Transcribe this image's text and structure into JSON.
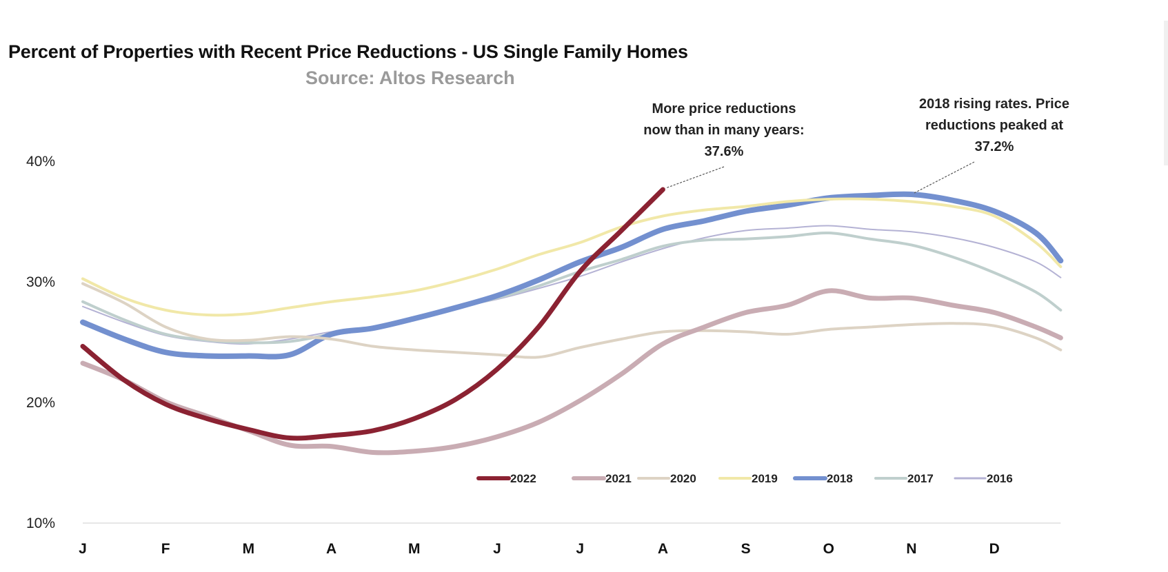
{
  "chart_data": {
    "type": "line",
    "title": "Percent of Properties with Recent Price Reductions - US Single Family Homes",
    "subtitle": "Source: Altos Research",
    "xlabel": "",
    "ylabel": "",
    "ylim": [
      10,
      40
    ],
    "yticks": [
      {
        "value": 40,
        "label": "40%"
      },
      {
        "value": 30,
        "label": "30%"
      },
      {
        "value": 20,
        "label": "20%"
      },
      {
        "value": 10,
        "label": "10%"
      }
    ],
    "xticks": [
      {
        "value": 0,
        "label": "J"
      },
      {
        "value": 1,
        "label": "F"
      },
      {
        "value": 2,
        "label": "M"
      },
      {
        "value": 3,
        "label": "A"
      },
      {
        "value": 4,
        "label": "M"
      },
      {
        "value": 5,
        "label": "J"
      },
      {
        "value": 6,
        "label": "J"
      },
      {
        "value": 7,
        "label": "A"
      },
      {
        "value": 8,
        "label": "S"
      },
      {
        "value": 9,
        "label": "O"
      },
      {
        "value": 10,
        "label": "N"
      },
      {
        "value": 11,
        "label": "D"
      }
    ],
    "xlim": [
      0,
      11.8
    ],
    "grid": false,
    "legend_position": "bottom-center",
    "x": [
      0,
      0.5,
      1,
      1.5,
      2,
      2.5,
      3,
      3.5,
      4,
      4.5,
      5,
      5.5,
      6,
      6.5,
      7,
      7.5,
      8,
      8.5,
      9,
      9.5,
      10,
      10.5,
      11,
      11.5,
      11.8
    ],
    "series": [
      {
        "name": "2022",
        "color": "#8b2232",
        "width": 7,
        "values": [
          24.6,
          21.8,
          19.8,
          18.6,
          17.7,
          17.0,
          17.2,
          17.6,
          18.6,
          20.2,
          22.7,
          26.2,
          30.8,
          34.2,
          37.6,
          null,
          null,
          null,
          null,
          null,
          null,
          null,
          null,
          null,
          null
        ]
      },
      {
        "name": "2021",
        "color": "#c9acb3",
        "width": 7,
        "values": [
          23.2,
          21.8,
          20.0,
          18.8,
          17.6,
          16.4,
          16.3,
          15.8,
          15.9,
          16.3,
          17.1,
          18.3,
          20.1,
          22.3,
          24.8,
          26.2,
          27.4,
          28.0,
          29.2,
          28.6,
          28.6,
          28.0,
          27.4,
          26.2,
          25.3
        ]
      },
      {
        "name": "2020",
        "color": "#ddd3c4",
        "width": 4,
        "values": [
          29.8,
          28.2,
          26.2,
          25.2,
          25.1,
          25.4,
          25.2,
          24.6,
          24.3,
          24.1,
          23.9,
          23.7,
          24.5,
          25.2,
          25.8,
          25.9,
          25.8,
          25.6,
          26.0,
          26.2,
          26.4,
          26.5,
          26.3,
          25.3,
          24.3
        ]
      },
      {
        "name": "2019",
        "color": "#f1e8a8",
        "width": 4,
        "values": [
          30.2,
          28.6,
          27.6,
          27.2,
          27.3,
          27.8,
          28.3,
          28.7,
          29.2,
          30.0,
          31.0,
          32.2,
          33.2,
          34.5,
          35.4,
          35.9,
          36.2,
          36.6,
          36.8,
          36.8,
          36.6,
          36.2,
          35.4,
          33.2,
          31.2
        ]
      },
      {
        "name": "2018",
        "color": "#7390cf",
        "width": 8,
        "values": [
          26.6,
          25.2,
          24.1,
          23.8,
          23.8,
          23.9,
          25.6,
          26.1,
          26.9,
          27.8,
          28.8,
          30.1,
          31.6,
          32.8,
          34.3,
          35.0,
          35.8,
          36.3,
          36.9,
          37.1,
          37.2,
          36.7,
          35.8,
          34.0,
          31.7
        ]
      },
      {
        "name": "2017",
        "color": "#bfcfcd",
        "width": 4,
        "values": [
          28.3,
          26.8,
          25.6,
          25.1,
          24.9,
          25.0,
          25.6,
          26.1,
          27.0,
          27.8,
          28.6,
          29.6,
          30.8,
          31.8,
          32.9,
          33.4,
          33.5,
          33.7,
          34.0,
          33.5,
          33.0,
          32.0,
          30.7,
          29.1,
          27.6
        ]
      },
      {
        "name": "2016",
        "color": "#b4b2d4",
        "width": 2,
        "values": [
          27.9,
          26.6,
          25.5,
          25.0,
          24.8,
          25.2,
          25.8,
          26.2,
          27.0,
          27.8,
          28.5,
          29.4,
          30.4,
          31.6,
          32.7,
          33.6,
          34.2,
          34.4,
          34.6,
          34.3,
          34.1,
          33.6,
          32.8,
          31.6,
          30.3
        ]
      }
    ],
    "annotations": [
      {
        "lines": [
          "More price reductions",
          "now than in many years:",
          "37.6%"
        ],
        "points_to": {
          "series": "2022",
          "x": 7.0,
          "y": 37.6
        }
      },
      {
        "lines": [
          "2018 rising rates. Price",
          "reductions peaked at",
          "37.2%"
        ],
        "points_to": {
          "series": "2018",
          "x": 10.0,
          "y": 37.2
        }
      }
    ]
  }
}
